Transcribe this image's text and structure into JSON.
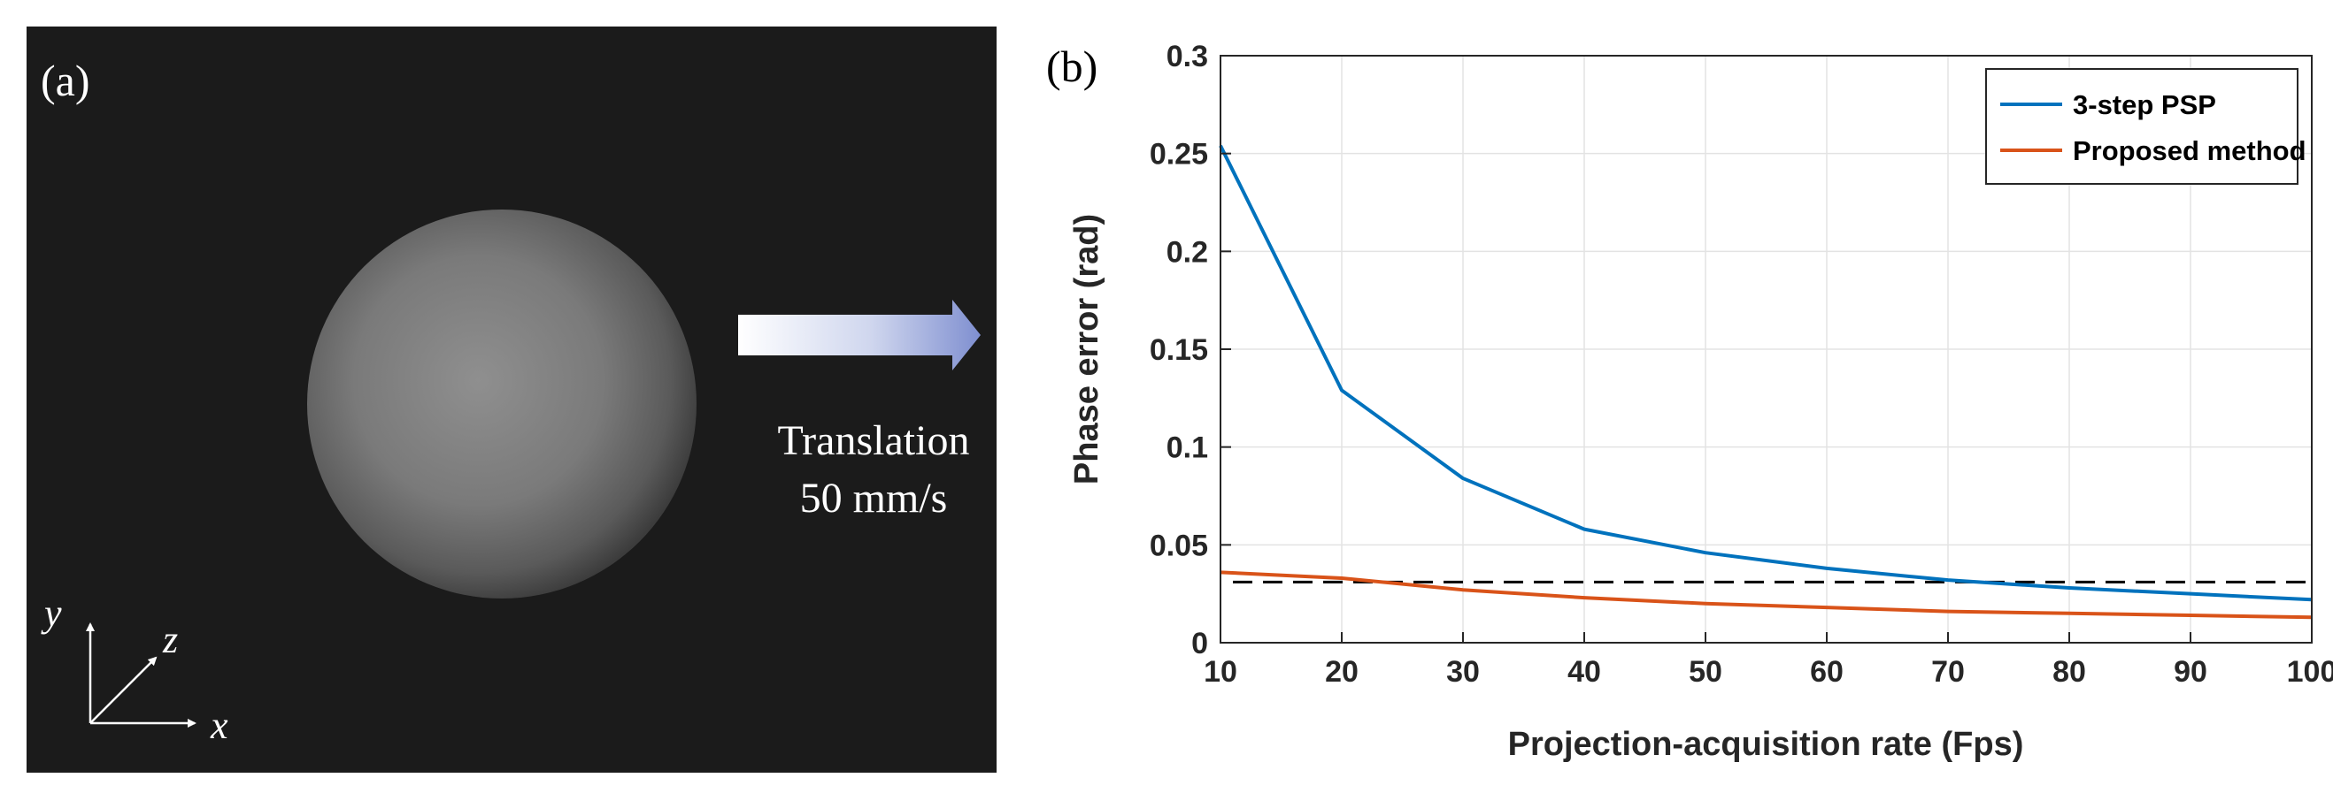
{
  "panel_a": {
    "label": "(a)",
    "annotation_line1": "Translation",
    "annotation_line2": "50 mm/s",
    "axes": {
      "y": "y",
      "z": "z",
      "x": "x"
    }
  },
  "chart_data": {
    "type": "line",
    "panel_label": "(b)",
    "xlabel": "Projection-acquisition rate (Fps)",
    "ylabel": "Phase error (rad)",
    "xlim": [
      10,
      100
    ],
    "ylim": [
      0,
      0.3
    ],
    "xticks": [
      10,
      20,
      30,
      40,
      50,
      60,
      70,
      80,
      90,
      100
    ],
    "yticks": [
      0,
      0.05,
      0.1,
      0.15,
      0.2,
      0.25,
      0.3
    ],
    "ytick_labels": [
      "0",
      "0.05",
      "0.1",
      "0.15",
      "0.2",
      "0.25",
      "0.3"
    ],
    "grid": true,
    "legend_position": "top-right",
    "x": [
      10,
      20,
      30,
      40,
      50,
      60,
      70,
      80,
      90,
      100
    ],
    "series": [
      {
        "name": "3-step PSP",
        "color": "#0072BD",
        "values": [
          0.254,
          0.129,
          0.084,
          0.058,
          0.046,
          0.038,
          0.032,
          0.028,
          0.025,
          0.022
        ]
      },
      {
        "name": "Proposed method",
        "color": "#D95319",
        "values": [
          0.036,
          0.033,
          0.027,
          0.023,
          0.02,
          0.018,
          0.016,
          0.015,
          0.014,
          0.013
        ]
      }
    ],
    "reference_line": {
      "y": 0.031,
      "style": "dashed",
      "color": "#000000"
    }
  }
}
